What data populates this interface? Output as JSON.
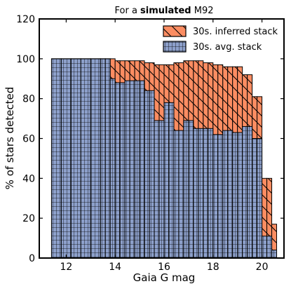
{
  "chart_data": {
    "type": "bar",
    "title": {
      "prefix": "For a ",
      "bold": "simulated",
      "suffix": " M92"
    },
    "xlabel": "Gaia G mag",
    "ylabel": "% of stars detected",
    "xlim": [
      10.9,
      20.9
    ],
    "ylim": [
      0,
      120
    ],
    "xticks": [
      12,
      14,
      16,
      18,
      20
    ],
    "yticks": [
      0,
      20,
      40,
      60,
      80,
      100,
      120
    ],
    "bin_edges": [
      11.4,
      11.8,
      12.2,
      12.6,
      13.0,
      13.4,
      13.6,
      13.8,
      14.0,
      14.2,
      14.4,
      14.6,
      14.8,
      15.0,
      15.2,
      15.4,
      15.6,
      15.8,
      16.0,
      16.2,
      16.4,
      16.6,
      16.8,
      17.0,
      17.2,
      17.4,
      17.6,
      17.8,
      18.0,
      18.2,
      18.4,
      18.6,
      18.8,
      19.0,
      19.2,
      19.4,
      19.6,
      19.8,
      20.0,
      20.2,
      20.4,
      20.6
    ],
    "series": [
      {
        "name": "30s. inferred stack",
        "color": "#fc8d62",
        "values": [
          100,
          100,
          100,
          100,
          100,
          100,
          100,
          100,
          99,
          99,
          99,
          99,
          99,
          99,
          98,
          98,
          97,
          97,
          97,
          97,
          98,
          98,
          99,
          99,
          99,
          99,
          98,
          98,
          97,
          97,
          96,
          96,
          96,
          96,
          92,
          92,
          81,
          81,
          40,
          40,
          17
        ]
      },
      {
        "name": "30s. avg. stack",
        "color": "#8da0cb",
        "values": [
          100,
          100,
          100,
          100,
          100,
          100,
          100,
          90,
          88,
          88,
          89,
          89,
          89,
          89,
          84,
          84,
          69,
          69,
          78,
          78,
          64,
          64,
          69,
          69,
          65,
          65,
          65,
          65,
          62,
          62,
          64,
          64,
          63,
          63,
          66,
          66,
          60,
          60,
          11,
          11,
          4
        ]
      }
    ],
    "legend_position": "top-right",
    "grid": false
  }
}
